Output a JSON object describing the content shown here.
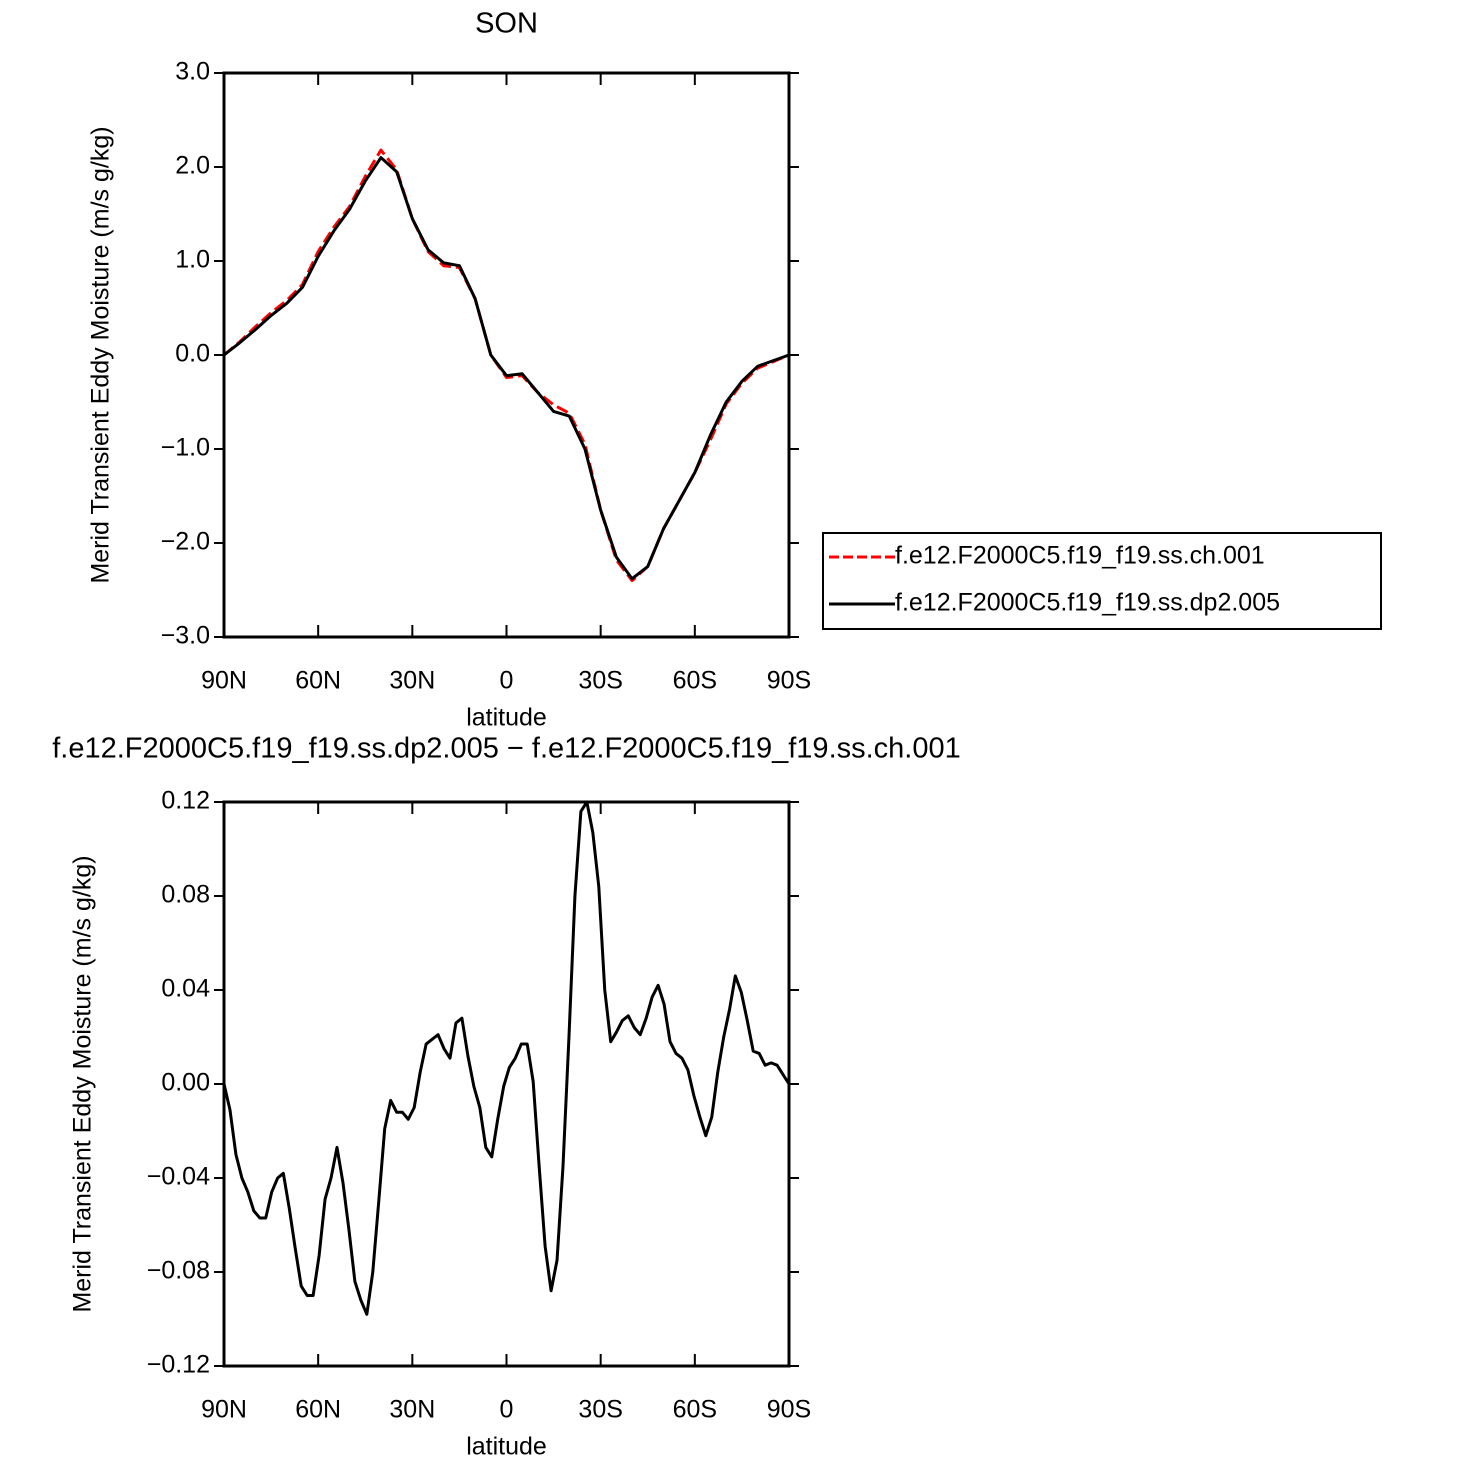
{
  "chart_data": [
    {
      "type": "line",
      "title": "SON",
      "xlabel": "latitude",
      "ylabel": "Merid Transient Eddy Moisture (m/s g/kg)",
      "x": [
        90,
        85,
        80,
        75,
        70,
        65,
        60,
        55,
        50,
        45,
        40,
        35,
        30,
        25,
        20,
        15,
        10,
        5,
        0,
        -5,
        -10,
        -15,
        -20,
        -25,
        -30,
        -35,
        -40,
        -45,
        -50,
        -55,
        -60,
        -65,
        -70,
        -75,
        -80,
        -85,
        -90
      ],
      "series": [
        {
          "name": "f.e12.F2000C5.f19_f19.ss.ch.001",
          "color": "#ff0000",
          "line_style": "dashed",
          "values": [
            0.0,
            0.14,
            0.3,
            0.45,
            0.58,
            0.75,
            1.1,
            1.36,
            1.58,
            1.9,
            2.18,
            1.97,
            1.45,
            1.1,
            0.95,
            0.93,
            0.6,
            0.0,
            -0.24,
            -0.22,
            -0.4,
            -0.53,
            -0.62,
            -0.95,
            -1.65,
            -2.18,
            -2.4,
            -2.25,
            -1.85,
            -1.55,
            -1.25,
            -0.9,
            -0.52,
            -0.3,
            -0.14,
            -0.07,
            0.0
          ]
        },
        {
          "name": "f.e12.F2000C5.f19_f19.ss.dp2.005",
          "color": "#000000",
          "line_style": "solid",
          "values": [
            0.0,
            0.13,
            0.27,
            0.42,
            0.55,
            0.72,
            1.05,
            1.32,
            1.55,
            1.85,
            2.1,
            1.95,
            1.45,
            1.12,
            0.98,
            0.95,
            0.6,
            0.0,
            -0.22,
            -0.2,
            -0.4,
            -0.6,
            -0.65,
            -1.0,
            -1.65,
            -2.15,
            -2.38,
            -2.25,
            -1.85,
            -1.55,
            -1.25,
            -0.85,
            -0.5,
            -0.28,
            -0.12,
            -0.06,
            0.0
          ]
        }
      ],
      "xlim": [
        90,
        -90
      ],
      "xticks": [
        {
          "value": 90,
          "label": "90N"
        },
        {
          "value": 60,
          "label": "60N"
        },
        {
          "value": 30,
          "label": "30N"
        },
        0,
        {
          "value": -30,
          "label": "30S"
        },
        {
          "value": -60,
          "label": "60S"
        },
        {
          "value": -90,
          "label": "90S"
        }
      ],
      "ylim": [
        -3.0,
        3.0
      ],
      "yticks": [
        {
          "value": 3,
          "label": "3.0"
        },
        {
          "value": 2,
          "label": "2.0"
        },
        {
          "value": 1,
          "label": "1.0"
        },
        {
          "value": 0,
          "label": "0.0"
        },
        {
          "value": -1,
          "label": "−1.0"
        },
        {
          "value": -2,
          "label": "−2.0"
        },
        {
          "value": -3,
          "label": "−3.0"
        }
      ],
      "legend": "outside right"
    },
    {
      "type": "line",
      "title": "f.e12.F2000C5.f19_f19.ss.dp2.005 − f.e12.F2000C5.f19_f19.ss.ch.001",
      "xlabel": "latitude",
      "ylabel": "Merid Transient Eddy Moisture (m/s g/kg)",
      "x": [
        90,
        88.1,
        86.2,
        84.3,
        82.4,
        80.5,
        78.6,
        76.7,
        74.8,
        72.9,
        71.1,
        69.2,
        67.3,
        65.4,
        63.5,
        61.6,
        59.7,
        57.8,
        55.9,
        54.0,
        52.1,
        50.2,
        48.3,
        46.4,
        44.5,
        42.6,
        40.7,
        38.8,
        36.9,
        35.0,
        33.2,
        31.3,
        29.4,
        27.5,
        25.6,
        23.7,
        21.8,
        19.9,
        18.0,
        16.1,
        14.2,
        12.3,
        10.4,
        8.5,
        6.6,
        4.7,
        2.8,
        0.9,
        -0.9,
        -2.8,
        -4.7,
        -6.6,
        -8.5,
        -10.4,
        -12.3,
        -14.2,
        -16.1,
        -18.0,
        -19.9,
        -21.8,
        -23.7,
        -25.6,
        -27.5,
        -29.4,
        -31.3,
        -33.2,
        -35.0,
        -36.9,
        -38.8,
        -40.7,
        -42.6,
        -44.5,
        -46.4,
        -48.3,
        -50.2,
        -52.1,
        -54.0,
        -55.9,
        -57.8,
        -59.7,
        -61.6,
        -63.5,
        -65.4,
        -67.3,
        -69.2,
        -71.1,
        -72.9,
        -74.8,
        -76.7,
        -78.6,
        -80.5,
        -82.4,
        -84.3,
        -86.2,
        -88.1,
        -90
      ],
      "series": [
        {
          "color": "#000000",
          "line_style": "solid",
          "values": [
            0.0,
            -0.011,
            -0.03,
            -0.04,
            -0.046,
            -0.054,
            -0.057,
            -0.057,
            -0.046,
            -0.04,
            -0.038,
            -0.053,
            -0.07,
            -0.086,
            -0.09,
            -0.09,
            -0.073,
            -0.049,
            -0.04,
            -0.027,
            -0.042,
            -0.062,
            -0.084,
            -0.092,
            -0.098,
            -0.08,
            -0.05,
            -0.019,
            -0.007,
            -0.012,
            -0.012,
            -0.015,
            -0.01,
            0.005,
            0.017,
            0.019,
            0.021,
            0.015,
            0.011,
            0.026,
            0.028,
            0.012,
            -0.001,
            -0.01,
            -0.027,
            -0.031,
            -0.015,
            -0.001,
            0.007,
            0.011,
            0.017,
            0.017,
            0.001,
            -0.035,
            -0.069,
            -0.088,
            -0.075,
            -0.035,
            0.02,
            0.08,
            0.116,
            0.12,
            0.107,
            0.084,
            0.04,
            0.018,
            0.022,
            0.027,
            0.029,
            0.024,
            0.021,
            0.028,
            0.037,
            0.042,
            0.034,
            0.018,
            0.013,
            0.011,
            0.006,
            -0.005,
            -0.014,
            -0.022,
            -0.014,
            0.005,
            0.02,
            0.032,
            0.046,
            0.039,
            0.027,
            0.014,
            0.013,
            0.008,
            0.009,
            0.008,
            0.004,
            0.0
          ]
        }
      ],
      "xlim": [
        90,
        -90
      ],
      "xticks": [
        {
          "value": 90,
          "label": "90N"
        },
        {
          "value": 60,
          "label": "60N"
        },
        {
          "value": 30,
          "label": "30N"
        },
        0,
        {
          "value": -30,
          "label": "30S"
        },
        {
          "value": -60,
          "label": "60S"
        },
        {
          "value": -90,
          "label": "90S"
        }
      ],
      "ylim": [
        -0.12,
        0.12
      ],
      "yticks": [
        0.12,
        0.08,
        0.04,
        {
          "value": 0,
          "label": "0.00"
        },
        {
          "value": -0.04,
          "label": "−0.04"
        },
        {
          "value": -0.08,
          "label": "−0.08"
        },
        {
          "value": -0.12,
          "label": "−0.12"
        }
      ]
    }
  ]
}
